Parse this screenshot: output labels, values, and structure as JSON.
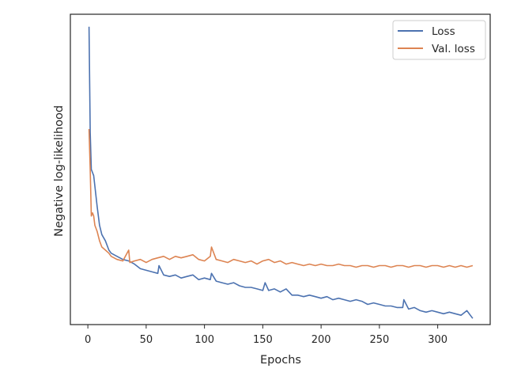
{
  "chart_data": {
    "type": "line",
    "xlabel": "Epochs",
    "ylabel": "Negative log-likelihood",
    "xlim": [
      -15,
      345
    ],
    "ylim": [
      0,
      100
    ],
    "x_ticks": [
      0,
      50,
      100,
      150,
      200,
      250,
      300
    ],
    "y_ticks_labeled": false,
    "grid": false,
    "legend": "top-right",
    "series": [
      {
        "name": "Loss",
        "color": "#4c72b0",
        "x": [
          1,
          2,
          3,
          5,
          8,
          10,
          12,
          15,
          18,
          20,
          25,
          30,
          35,
          40,
          45,
          50,
          55,
          60,
          61,
          65,
          70,
          75,
          80,
          85,
          90,
          95,
          100,
          105,
          106,
          110,
          115,
          120,
          125,
          130,
          135,
          140,
          145,
          150,
          152,
          155,
          160,
          165,
          170,
          175,
          180,
          185,
          190,
          195,
          200,
          205,
          210,
          215,
          220,
          225,
          230,
          235,
          240,
          245,
          250,
          255,
          260,
          265,
          270,
          271,
          275,
          280,
          285,
          290,
          295,
          300,
          305,
          310,
          315,
          320,
          325,
          330
        ],
        "values": [
          96,
          62,
          50,
          48,
          38,
          32,
          29,
          27,
          24,
          23,
          22,
          21,
          20.5,
          19.5,
          18,
          17.5,
          17,
          16.5,
          19,
          16,
          15.5,
          16,
          15,
          15.5,
          16,
          14.5,
          15,
          14.5,
          16.5,
          14,
          13.5,
          13,
          13.5,
          12.5,
          12,
          12,
          11.5,
          11,
          13.5,
          11,
          11.5,
          10.5,
          11.5,
          9.5,
          9.5,
          9,
          9.5,
          9,
          8.5,
          9,
          8,
          8.5,
          8,
          7.5,
          8,
          7.5,
          6.5,
          7,
          6.5,
          6,
          6,
          5.5,
          5.5,
          8,
          5,
          5.5,
          4.5,
          4,
          4.5,
          4,
          3.5,
          4,
          3.5,
          3,
          4.5,
          2
        ]
      },
      {
        "name": "Val. loss",
        "color": "#dd8452",
        "x": [
          1,
          2,
          3,
          4,
          5,
          6,
          8,
          10,
          12,
          15,
          18,
          20,
          25,
          30,
          35,
          36,
          40,
          45,
          50,
          55,
          60,
          65,
          70,
          75,
          80,
          85,
          90,
          95,
          100,
          105,
          106,
          110,
          115,
          120,
          125,
          130,
          135,
          140,
          145,
          150,
          155,
          160,
          165,
          170,
          175,
          180,
          185,
          190,
          195,
          200,
          205,
          210,
          215,
          220,
          225,
          230,
          235,
          240,
          245,
          250,
          255,
          260,
          265,
          270,
          275,
          280,
          285,
          290,
          295,
          300,
          305,
          310,
          315,
          320,
          325,
          330
        ],
        "values": [
          63,
          50,
          35,
          36,
          35,
          32,
          30,
          27,
          25,
          24,
          23,
          22,
          21,
          20.5,
          24,
          20,
          20.5,
          21,
          20,
          21,
          21.5,
          22,
          21,
          22,
          21.5,
          22,
          22.5,
          21,
          20.5,
          22,
          25,
          21,
          20.5,
          20,
          21,
          20.5,
          20,
          20.5,
          19.5,
          20.5,
          21,
          20,
          20.5,
          19.5,
          20,
          19.5,
          19,
          19.5,
          19,
          19.5,
          19,
          19,
          19.5,
          19,
          19,
          18.5,
          19,
          19,
          18.5,
          19,
          19,
          18.5,
          19,
          19,
          18.5,
          19,
          19,
          18.5,
          19,
          19,
          18.5,
          19,
          18.5,
          19,
          18.5,
          19
        ]
      }
    ]
  }
}
